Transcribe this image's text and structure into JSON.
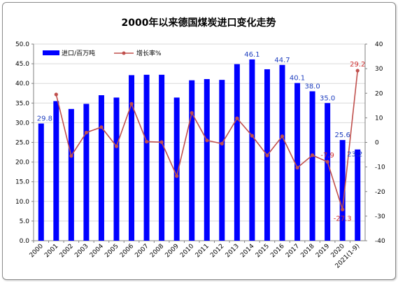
{
  "chart_data": {
    "type": "bar",
    "title": "2000年以来德国煤炭进口变化走势",
    "categories": [
      "2000",
      "2001",
      "2002",
      "2003",
      "2004",
      "2005",
      "2006",
      "2007",
      "2008",
      "2009",
      "2010",
      "2011",
      "2012",
      "2013",
      "2014",
      "2015",
      "2016",
      "2017",
      "2018",
      "2019",
      "2020",
      "2021(1-9)"
    ],
    "series": [
      {
        "name": "进口/百万吨",
        "type": "bar",
        "axis": "left",
        "color": "#0000ff",
        "values": [
          29.8,
          35.5,
          33.5,
          34.8,
          37.0,
          36.4,
          42.1,
          42.2,
          42.2,
          36.4,
          40.8,
          41.1,
          40.9,
          44.9,
          46.1,
          43.6,
          44.7,
          40.1,
          38.0,
          35.0,
          25.6,
          23.2
        ],
        "labels": {
          "0": "29.8",
          "14": "46.1",
          "16": "44.7",
          "17": "40.1",
          "18": "38.0",
          "19": "35.0",
          "20": "25.6",
          "21": "23.2"
        }
      },
      {
        "name": "增长率%",
        "type": "line",
        "axis": "right",
        "color": "#c0504d",
        "values": [
          null,
          19.5,
          -5.5,
          4.0,
          6.2,
          -1.6,
          15.7,
          0.3,
          0.1,
          -13.7,
          12.0,
          0.8,
          -0.5,
          9.8,
          2.7,
          -5.3,
          2.5,
          -10.3,
          -5.2,
          -7.9,
          -27.3,
          29.2
        ],
        "labels": {
          "19": "-7.9",
          "20": "-27.3",
          "21": "29.2"
        }
      }
    ],
    "ylim_left": [
      0,
      50
    ],
    "yticks_left": [
      "0.0",
      "5.0",
      "10.0",
      "15.0",
      "20.0",
      "25.0",
      "30.0",
      "35.0",
      "40.0",
      "45.0",
      "50.0"
    ],
    "ylim_right": [
      -40,
      40
    ],
    "yticks_right": [
      "-40",
      "-30",
      "-20",
      "-10",
      "0",
      "10",
      "20",
      "30",
      "40"
    ],
    "grid": true,
    "legend": "top-left"
  }
}
